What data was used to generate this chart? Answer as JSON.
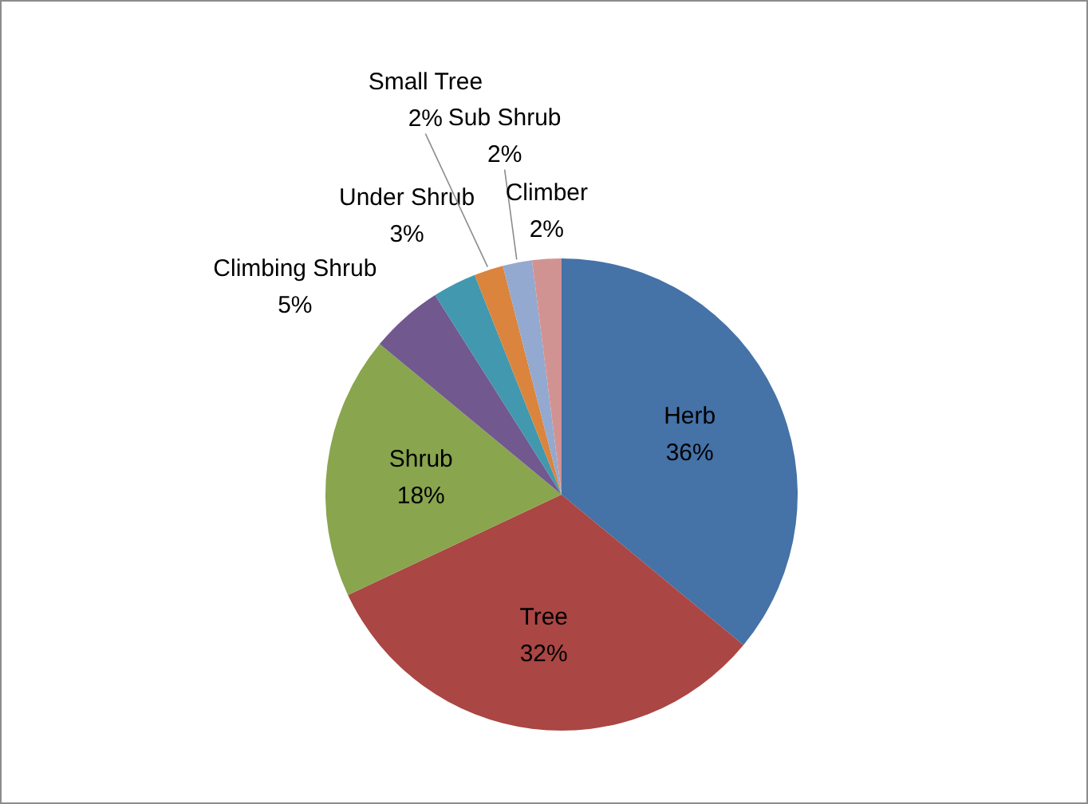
{
  "chart_data": {
    "type": "pie",
    "categories": [
      "Herb",
      "Tree",
      "Shrub",
      "Climbing Shrub",
      "Under Shrub",
      "Small Tree",
      "Sub Shrub",
      "Climber"
    ],
    "values": [
      36,
      32,
      18,
      5,
      3,
      2,
      2,
      2
    ],
    "value_labels": [
      "36%",
      "32%",
      "18%",
      "5%",
      "3%",
      "2%",
      "2%",
      "2%"
    ],
    "colors": [
      "#4572a7",
      "#aa4643",
      "#89a54e",
      "#71588f",
      "#4198af",
      "#db843d",
      "#93a9cf",
      "#d19392"
    ],
    "legend": false
  }
}
